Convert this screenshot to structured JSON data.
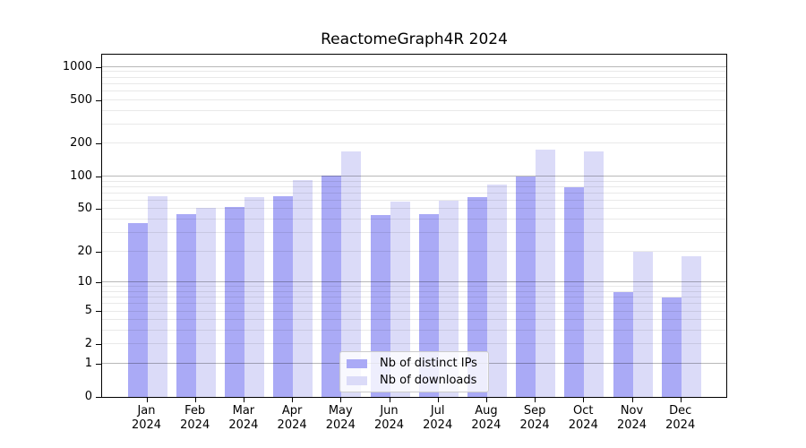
{
  "title": "ReactomeGraph4R 2024",
  "colors": {
    "ips_bar": "#aaaaf6",
    "downloads_bar": "#dbdbf8",
    "grid_minor": "rgba(0,0,0,0.085)",
    "grid_major": "rgba(0,0,0,0.28)",
    "spine": "#000000",
    "legend_border": "#cccccc"
  },
  "legend": {
    "entries": [
      "Nb of distinct IPs",
      "Nb of downloads"
    ]
  },
  "chart_data": {
    "type": "bar",
    "title": "ReactomeGraph4R 2024",
    "categories": [
      "Jan",
      "Feb",
      "Mar",
      "Apr",
      "May",
      "Jun",
      "Jul",
      "Aug",
      "Sep",
      "Oct",
      "Nov",
      "Dec"
    ],
    "year_label": "2024",
    "series": [
      {
        "name": "Nb of distinct IPs",
        "color": "#aaaaf6",
        "values": [
          37,
          45,
          52,
          66,
          101,
          44,
          45,
          65,
          100,
          79,
          8,
          7
        ]
      },
      {
        "name": "Nb of downloads",
        "color": "#dbdbf8",
        "values": [
          66,
          51,
          64,
          92,
          170,
          59,
          60,
          84,
          178,
          170,
          20,
          18
        ]
      }
    ],
    "scale": "log1p",
    "ylim": [
      0,
      1294
    ],
    "y_ticks": [
      0,
      1,
      2,
      5,
      10,
      20,
      50,
      100,
      200,
      500,
      1000
    ],
    "y_minor_gridlines": [
      2,
      3,
      4,
      5,
      6,
      7,
      8,
      9,
      20,
      30,
      40,
      50,
      60,
      70,
      80,
      90,
      200,
      300,
      400,
      500,
      600,
      700,
      800,
      900
    ],
    "y_major_gridlines": [
      1,
      10,
      100,
      1000
    ],
    "grid": true,
    "legend_position": "bottom-center"
  }
}
